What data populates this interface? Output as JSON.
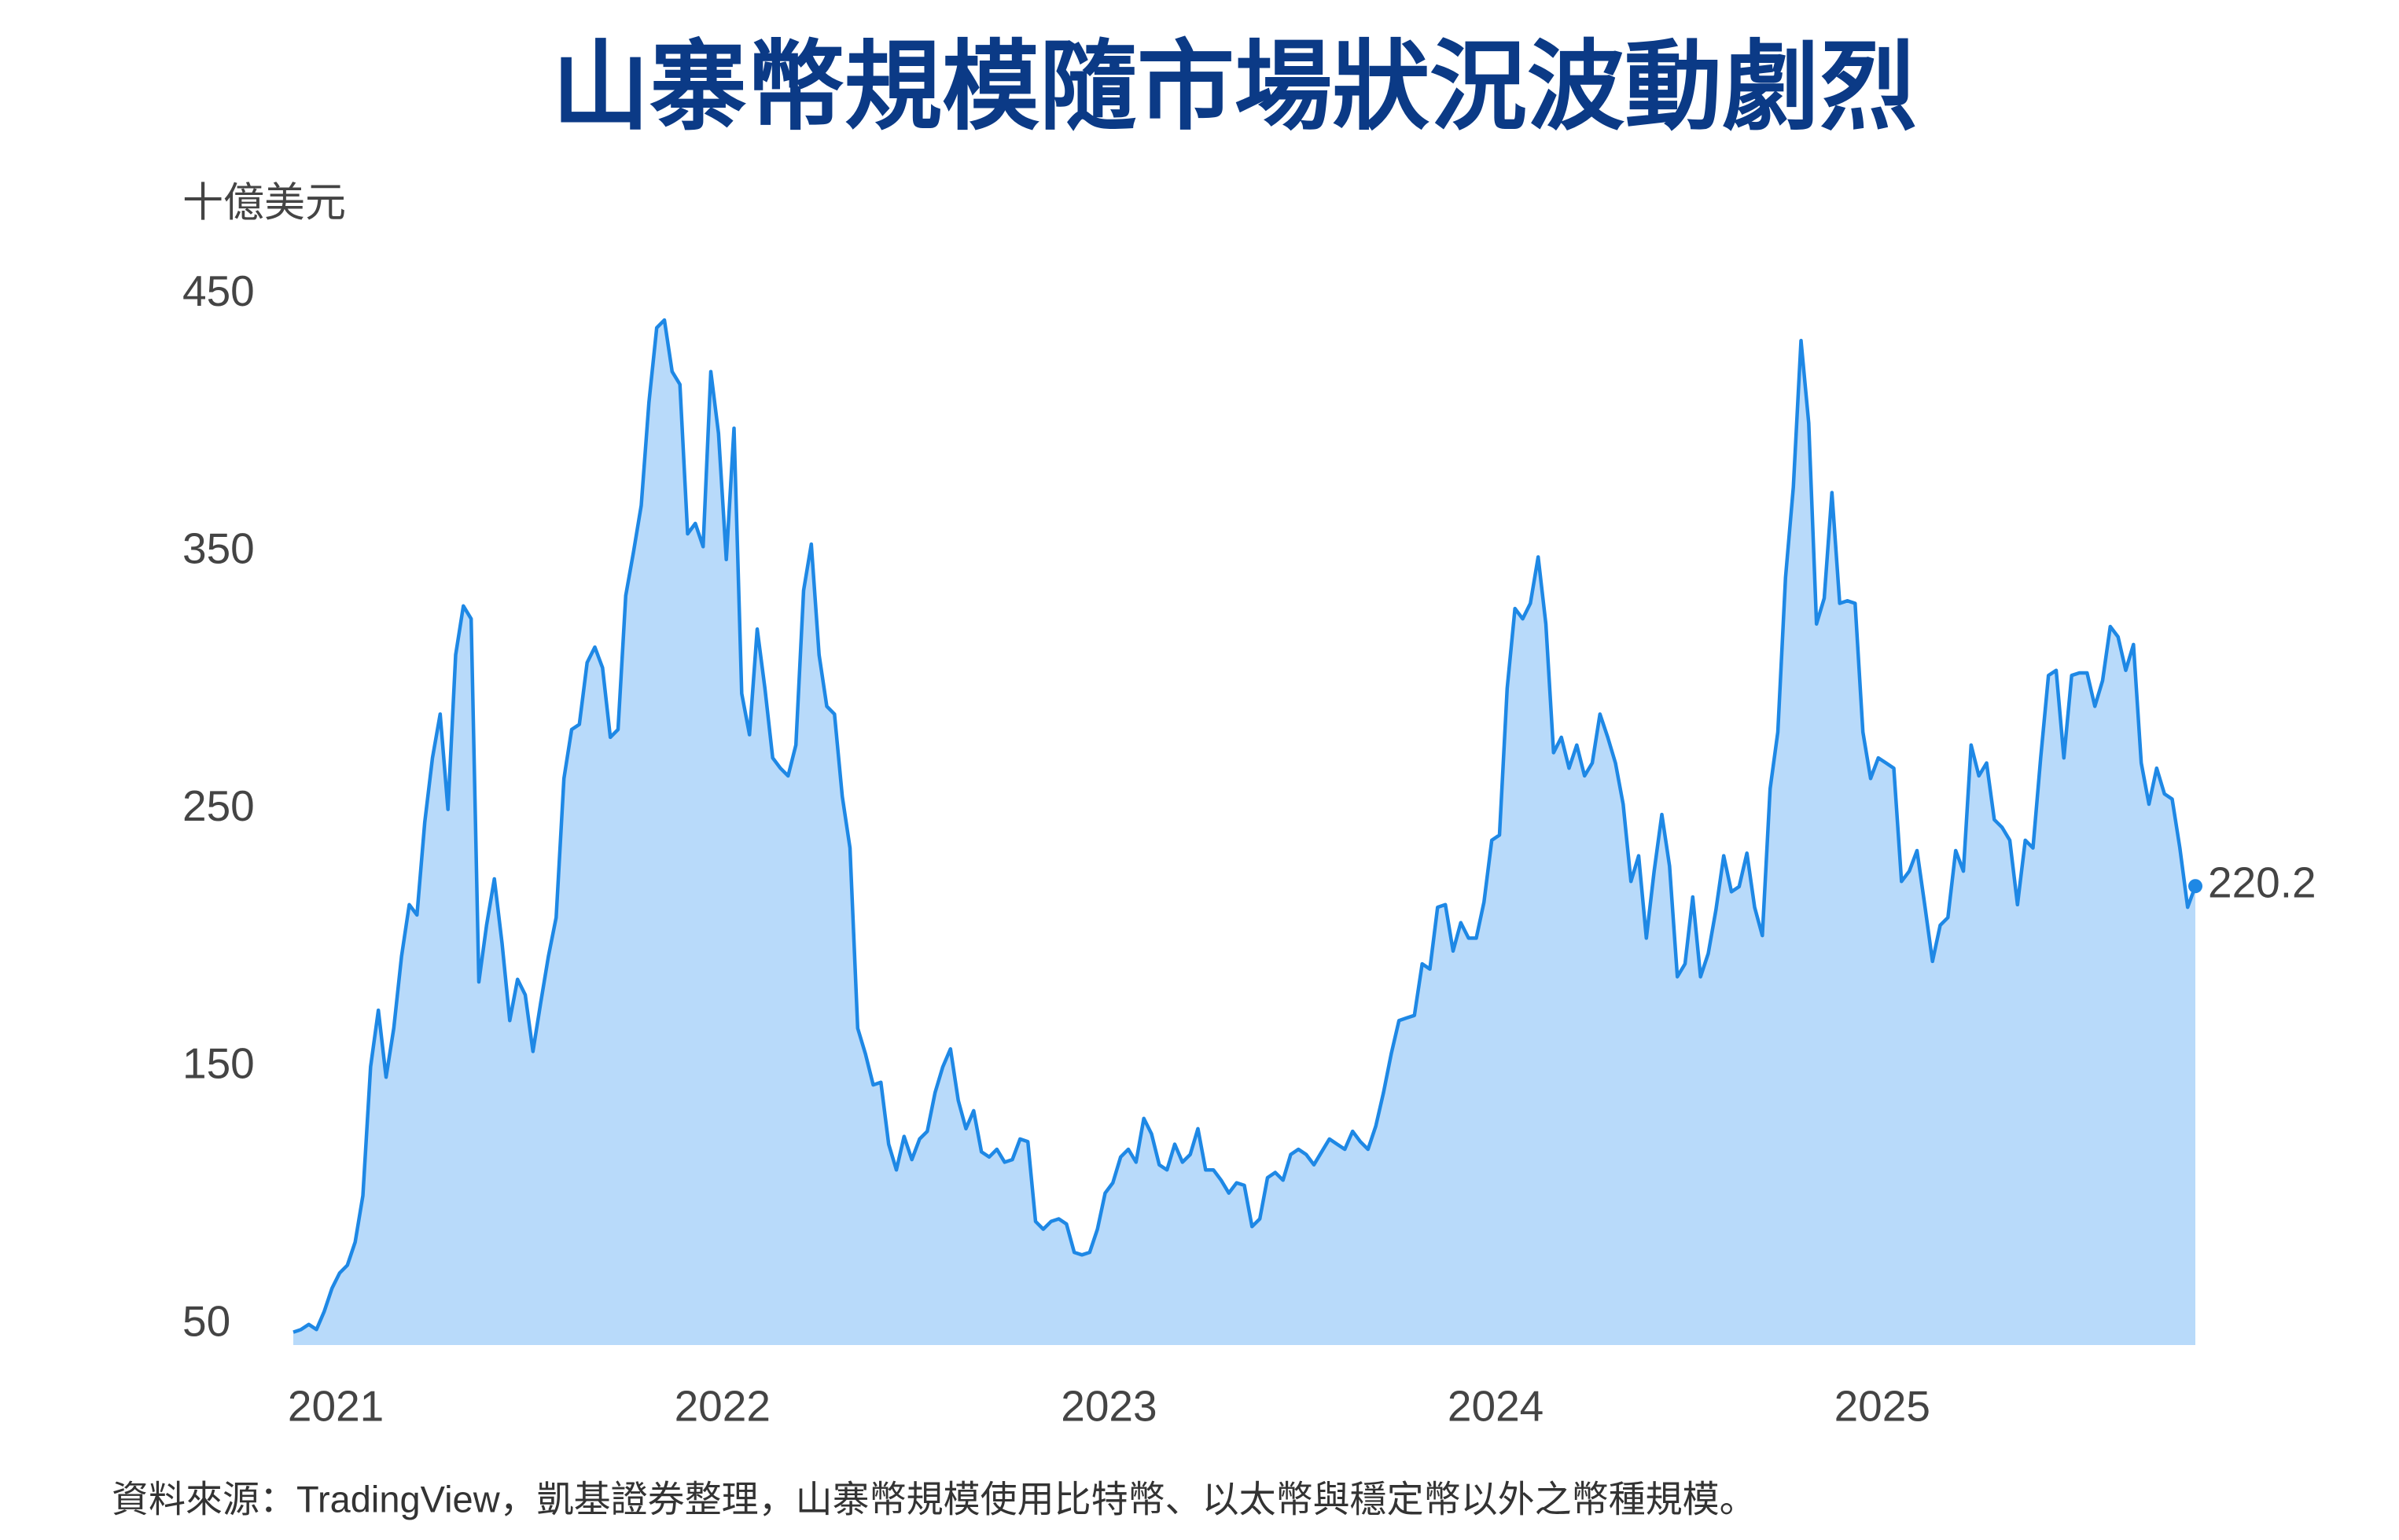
{
  "chart_data": {
    "type": "area",
    "title": "山寨幣規模隨市場狀況波動劇烈",
    "y_axis_label": "十億美元",
    "source": "資料來源：TradingView，凱基證券整理，山寨幣規模使用比特幣、以太幣與穩定幣以外之幣種規模。",
    "color": "#1e88e5",
    "fill_color": "#b8dafa",
    "xlim": [
      2020.89,
      2025.81
    ],
    "xticks": [
      2021,
      2022,
      2023,
      2024,
      2025
    ],
    "ylim": [
      42,
      455
    ],
    "yticks": [
      50,
      150,
      250,
      350,
      450
    ],
    "x": [
      2020.89,
      2020.91,
      2020.93,
      2020.95,
      2020.97,
      2020.99,
      2021.01,
      2021.03,
      2021.05,
      2021.07,
      2021.09,
      2021.11,
      2021.13,
      2021.15,
      2021.17,
      2021.19,
      2021.21,
      2021.23,
      2021.25,
      2021.27,
      2021.29,
      2021.31,
      2021.33,
      2021.35,
      2021.37,
      2021.39,
      2021.41,
      2021.43,
      2021.45,
      2021.47,
      2021.49,
      2021.51,
      2021.53,
      2021.55,
      2021.57,
      2021.59,
      2021.61,
      2021.63,
      2021.65,
      2021.67,
      2021.69,
      2021.71,
      2021.73,
      2021.75,
      2021.77,
      2021.79,
      2021.81,
      2021.83,
      2021.85,
      2021.87,
      2021.89,
      2021.91,
      2021.93,
      2021.95,
      2021.97,
      2021.99,
      2022.01,
      2022.03,
      2022.05,
      2022.07,
      2022.09,
      2022.11,
      2022.13,
      2022.15,
      2022.17,
      2022.19,
      2022.21,
      2022.23,
      2022.25,
      2022.27,
      2022.29,
      2022.31,
      2022.33,
      2022.35,
      2022.37,
      2022.39,
      2022.41,
      2022.43,
      2022.45,
      2022.47,
      2022.49,
      2022.51,
      2022.53,
      2022.55,
      2022.57,
      2022.59,
      2022.61,
      2022.63,
      2022.65,
      2022.67,
      2022.69,
      2022.71,
      2022.73,
      2022.75,
      2022.77,
      2022.79,
      2022.81,
      2022.83,
      2022.85,
      2022.87,
      2022.89,
      2022.91,
      2022.93,
      2022.95,
      2022.97,
      2022.99,
      2023.01,
      2023.03,
      2023.05,
      2023.07,
      2023.09,
      2023.11,
      2023.13,
      2023.15,
      2023.17,
      2023.19,
      2023.21,
      2023.23,
      2023.25,
      2023.27,
      2023.29,
      2023.31,
      2023.33,
      2023.35,
      2023.37,
      2023.39,
      2023.41,
      2023.43,
      2023.45,
      2023.47,
      2023.49,
      2023.51,
      2023.53,
      2023.55,
      2023.57,
      2023.59,
      2023.61,
      2023.63,
      2023.65,
      2023.67,
      2023.69,
      2023.71,
      2023.73,
      2023.75,
      2023.77,
      2023.79,
      2023.81,
      2023.83,
      2023.85,
      2023.87,
      2023.89,
      2023.91,
      2023.93,
      2023.95,
      2023.97,
      2023.99,
      2024.01,
      2024.03,
      2024.05,
      2024.07,
      2024.09,
      2024.11,
      2024.13,
      2024.15,
      2024.17,
      2024.19,
      2024.21,
      2024.23,
      2024.25,
      2024.27,
      2024.29,
      2024.31,
      2024.33,
      2024.35,
      2024.37,
      2024.39,
      2024.41,
      2024.43,
      2024.45,
      2024.47,
      2024.49,
      2024.51,
      2024.53,
      2024.55,
      2024.57,
      2024.59,
      2024.61,
      2024.63,
      2024.65,
      2024.67,
      2024.69,
      2024.71,
      2024.73,
      2024.75,
      2024.77,
      2024.79,
      2024.81,
      2024.83,
      2024.85,
      2024.87,
      2024.89,
      2024.91,
      2024.93,
      2024.95,
      2024.97,
      2024.99,
      2025.01,
      2025.03,
      2025.05,
      2025.07,
      2025.09,
      2025.11,
      2025.13,
      2025.15,
      2025.17,
      2025.19,
      2025.21,
      2025.23,
      2025.25,
      2025.27,
      2025.29,
      2025.31,
      2025.33,
      2025.35,
      2025.37,
      2025.39,
      2025.41,
      2025.43,
      2025.45,
      2025.47,
      2025.49,
      2025.51,
      2025.53,
      2025.55,
      2025.57,
      2025.59,
      2025.61,
      2025.63,
      2025.65,
      2025.67,
      2025.69,
      2025.71,
      2025.73,
      2025.75,
      2025.77,
      2025.79,
      2025.81
    ],
    "values": [
      47,
      48,
      50,
      48,
      55,
      64,
      70,
      73,
      82,
      100,
      150,
      172,
      146,
      165,
      193,
      213,
      209,
      245,
      270,
      287,
      250,
      310,
      329,
      324,
      183,
      205,
      223,
      198,
      168,
      184,
      178,
      156,
      175,
      193,
      208,
      262,
      281,
      283,
      307,
      313,
      305,
      278,
      281,
      333,
      350,
      368,
      408,
      437,
      440,
      420,
      415,
      357,
      361,
      352,
      420,
      396,
      347,
      398,
      295,
      279,
      320,
      297,
      270,
      266,
      263,
      275,
      335,
      353,
      310,
      290,
      287,
      255,
      235,
      165,
      155,
      143,
      144,
      120,
      110,
      123,
      114,
      122,
      125,
      140,
      150,
      157,
      137,
      126,
      133,
      117,
      115,
      118,
      113,
      114,
      122,
      121,
      90,
      87,
      90,
      91,
      89,
      78,
      77,
      78,
      87,
      101,
      105,
      115,
      118,
      113,
      130,
      124,
      112,
      110,
      120,
      113,
      116,
      126,
      110,
      110,
      106,
      101,
      105,
      104,
      88,
      91,
      107,
      109,
      106,
      116,
      118,
      116,
      112,
      117,
      122,
      120,
      118,
      125,
      121,
      118,
      127,
      140,
      155,
      168,
      169,
      170,
      190,
      188,
      212,
      213,
      195,
      206,
      200,
      200,
      214,
      238,
      240,
      297,
      328,
      324,
      330,
      348,
      322,
      272,
      278,
      266,
      275,
      263,
      268,
      287,
      278,
      268,
      252,
      222,
      232,
      200,
      226,
      248,
      228,
      185,
      190,
      216,
      185,
      194,
      211,
      232,
      218,
      220,
      233,
      212,
      201,
      258,
      280,
      340,
      375,
      432,
      400,
      322,
      332,
      373,
      330,
      331,
      330,
      280,
      262,
      270,
      268,
      266,
      222,
      226,
      234,
      213,
      191,
      205,
      208,
      234,
      226,
      275,
      263,
      268,
      246,
      243,
      238,
      213,
      238,
      235,
      270,
      302,
      304,
      270,
      302,
      303,
      303,
      290,
      300,
      321,
      317,
      304,
      314,
      268,
      252,
      266,
      256,
      254,
      235,
      212,
      220.2
    ]
  }
}
